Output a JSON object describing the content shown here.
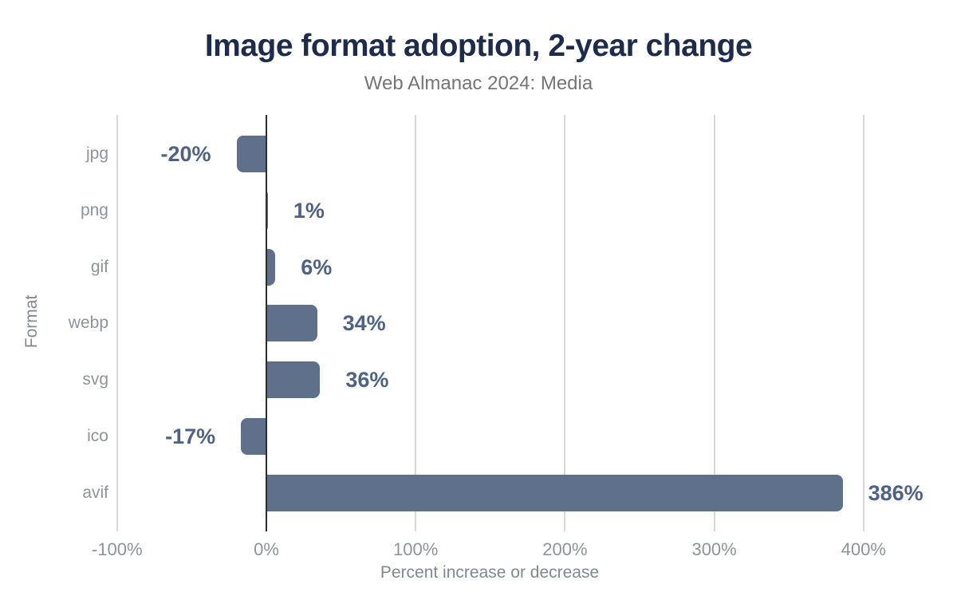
{
  "chart_data": {
    "type": "bar",
    "orientation": "horizontal",
    "title": "Image format adoption, 2-year change",
    "subtitle": "Web Almanac 2024: Media",
    "categories": [
      "jpg",
      "png",
      "gif",
      "webp",
      "svg",
      "ico",
      "avif"
    ],
    "values": [
      -20,
      1,
      6,
      34,
      36,
      -17,
      386
    ],
    "labels": [
      "-20%",
      "1%",
      "6%",
      "34%",
      "36%",
      "-17%",
      "386%"
    ],
    "xlabel": "Percent increase or decrease",
    "ylabel": "Format",
    "xlim": [
      -100,
      450
    ],
    "xticks": [
      -100,
      0,
      100,
      200,
      300,
      400
    ],
    "xtick_labels": [
      "-100%",
      "0%",
      "100%",
      "200%",
      "300%",
      "400%"
    ],
    "grid": "vertical-gridlines-behind-bars",
    "legend": "none"
  },
  "colors": {
    "background": "#ffffff",
    "bar": "#5f718a",
    "value_label": "#4e6288",
    "title": "#1d2b4d",
    "subtitle": "#757575",
    "category_label": "#8e939b",
    "tick_label": "#8e939b",
    "axis_title": "#82888f",
    "gridline": "#d8d8d8",
    "zero_line": "#2d2d2d"
  }
}
